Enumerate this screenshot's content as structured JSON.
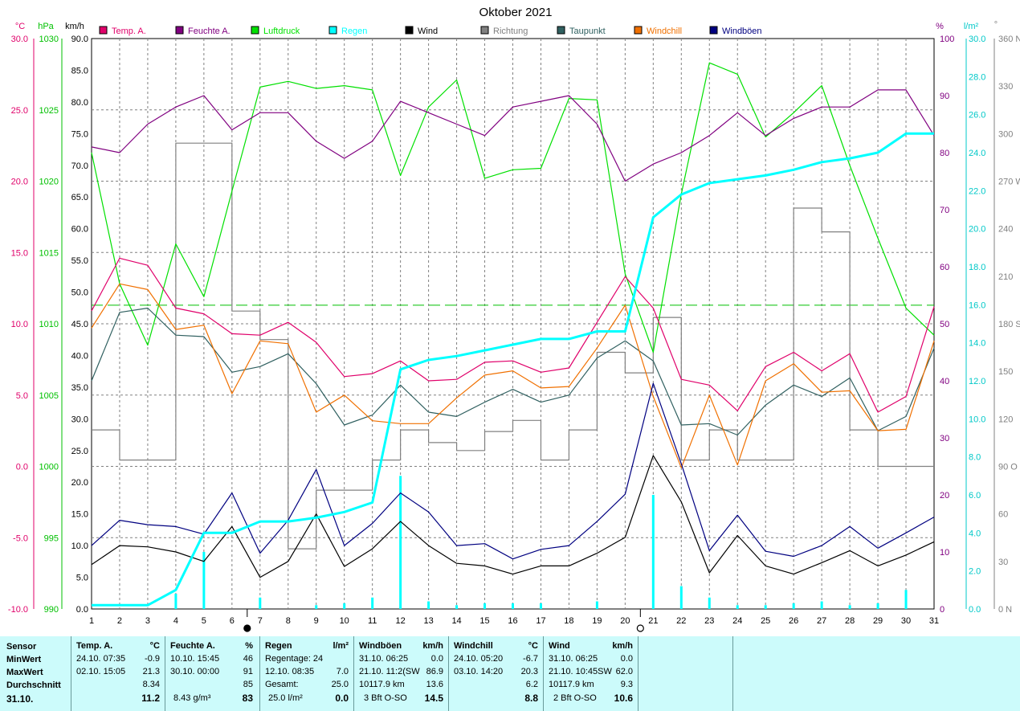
{
  "title": "Oktober 2021",
  "axes": {
    "left1": {
      "unit": "°C",
      "ticks": [
        "30.0",
        "25.0",
        "20.0",
        "15.0",
        "10.0",
        "5.0",
        "0.0",
        "-5.0",
        "-10.0"
      ],
      "color": "#e0006a"
    },
    "left2": {
      "unit": "hPa",
      "ticks": [
        "1030",
        "1025",
        "1020",
        "1015",
        "1010",
        "1005",
        "1000",
        "995",
        "990"
      ],
      "color": "#00c000"
    },
    "left3": {
      "unit": "km/h",
      "ticks": [
        "90.0",
        "85.0",
        "80.0",
        "75.0",
        "70.0",
        "65.0",
        "60.0",
        "55.0",
        "50.0",
        "45.0",
        "40.0",
        "35.0",
        "30.0",
        "25.0",
        "20.0",
        "15.0",
        "10.0",
        "5.0",
        "0.0"
      ],
      "color": "#000000"
    },
    "right1": {
      "unit": "%",
      "ticks": [
        "100",
        "90",
        "80",
        "70",
        "60",
        "50",
        "40",
        "30",
        "20",
        "10",
        "0"
      ],
      "color": "#800080"
    },
    "right2": {
      "unit": "l/m²",
      "ticks": [
        "30.0",
        "28.0",
        "26.0",
        "24.0",
        "22.0",
        "20.0",
        "18.0",
        "16.0",
        "14.0",
        "12.0",
        "10.0",
        "8.0",
        "6.0",
        "4.0",
        "2.0",
        "0.0"
      ],
      "color": "#00c8c8"
    },
    "right3": {
      "unit": "°",
      "ticks": [
        "360 N",
        "330",
        "300",
        "270 W",
        "240",
        "210",
        "180 S",
        "150",
        "120",
        "90 O",
        "60",
        "30",
        "0 N"
      ],
      "color": "#808080"
    }
  },
  "legend": [
    {
      "label": "Temp. A.",
      "color": "#e0006a"
    },
    {
      "label": "Feuchte A.",
      "color": "#800080"
    },
    {
      "label": "Luftdruck",
      "color": "#00e000"
    },
    {
      "label": "Regen",
      "color": "#00ffff"
    },
    {
      "label": "Wind",
      "color": "#000000"
    },
    {
      "label": "Richtung",
      "color": "#808080"
    },
    {
      "label": "Taupunkt",
      "color": "#306060"
    },
    {
      "label": "Windchill",
      "color": "#f07000"
    },
    {
      "label": "Windböen",
      "color": "#000080"
    }
  ],
  "chart_data": {
    "type": "line",
    "title": "Oktober 2021",
    "x": [
      1,
      2,
      3,
      4,
      5,
      6,
      7,
      8,
      9,
      10,
      11,
      12,
      13,
      14,
      15,
      16,
      17,
      18,
      19,
      20,
      21,
      22,
      23,
      24,
      25,
      26,
      27,
      28,
      29,
      30,
      31
    ],
    "moon_phases": [
      {
        "day": 7,
        "phase": "new"
      },
      {
        "day": 21,
        "phase": "full"
      }
    ],
    "pressure_reference_hpa": 1011.3,
    "series": [
      {
        "name": "Temp. A.",
        "axis": "°C",
        "color": "#e0006a",
        "values": [
          10.9,
          14.6,
          14.1,
          11.1,
          10.7,
          9.3,
          9.2,
          10.1,
          8.7,
          6.3,
          6.5,
          7.4,
          6.0,
          6.1,
          7.3,
          7.4,
          6.6,
          6.9,
          10.1,
          13.3,
          11.1,
          6.1,
          5.7,
          3.9,
          7.0,
          8.0,
          6.7,
          7.9,
          3.8,
          4.9,
          11.2
        ]
      },
      {
        "name": "Feuchte A.",
        "axis": "%",
        "color": "#800080",
        "values": [
          81,
          80,
          85,
          88,
          90,
          84,
          87,
          87,
          82,
          79,
          82,
          89,
          87,
          85,
          83,
          88,
          89,
          90,
          85,
          75,
          78,
          80,
          83,
          87,
          83,
          86,
          88,
          88,
          91,
          91,
          83
        ]
      },
      {
        "name": "Luftdruck",
        "axis": "hPa",
        "color": "#00e000",
        "values": [
          1022.0,
          1012.8,
          1008.5,
          1015.6,
          1011.9,
          1019.3,
          1026.6,
          1027.0,
          1026.5,
          1026.7,
          1026.4,
          1020.4,
          1025.2,
          1027.1,
          1020.2,
          1020.8,
          1020.9,
          1025.8,
          1025.7,
          1013.5,
          1008.0,
          1019.1,
          1028.3,
          1027.5,
          1023.1,
          1024.8,
          1026.7,
          1021.1,
          1016.0,
          1011.1,
          1009.2
        ]
      },
      {
        "name": "Regen",
        "axis": "l/m²",
        "color": "#00ffff",
        "kind": "cumulative",
        "values": [
          0.2,
          0.2,
          0.2,
          1.0,
          4.0,
          4.0,
          4.6,
          4.6,
          4.8,
          5.1,
          5.6,
          12.6,
          13.1,
          13.3,
          13.6,
          13.9,
          14.2,
          14.2,
          14.6,
          14.6,
          20.6,
          21.8,
          22.4,
          22.6,
          22.8,
          23.1,
          23.5,
          23.7,
          24.0,
          25.0,
          25.0
        ]
      },
      {
        "name": "Regen",
        "axis": "l/m²",
        "color": "#00ffff",
        "kind": "daily",
        "values": [
          0.0,
          0.0,
          0.0,
          0.8,
          3.0,
          0.0,
          0.6,
          0.0,
          0.2,
          0.3,
          0.6,
          7.0,
          0.4,
          0.2,
          0.3,
          0.3,
          0.3,
          0.0,
          0.4,
          0.0,
          6.0,
          1.2,
          0.6,
          0.2,
          0.2,
          0.3,
          0.4,
          0.2,
          0.3,
          1.0,
          0.0
        ]
      },
      {
        "name": "Wind",
        "axis": "km/h",
        "color": "#000000",
        "values": [
          7.0,
          10.0,
          9.8,
          9.0,
          7.5,
          13.0,
          5.0,
          7.5,
          15.0,
          6.7,
          9.5,
          13.8,
          10.0,
          7.2,
          6.8,
          5.5,
          6.8,
          6.8,
          8.8,
          11.3,
          24.2,
          16.9,
          5.7,
          11.6,
          6.8,
          5.5,
          7.3,
          9.2,
          6.8,
          8.5,
          10.6
        ]
      },
      {
        "name": "Richtung",
        "axis": "°",
        "color": "#808080",
        "values": [
          113,
          94,
          94,
          294,
          294,
          188,
          170,
          38,
          75,
          75,
          94,
          113,
          105,
          100,
          112,
          119,
          94,
          113,
          162,
          149,
          184,
          94,
          113,
          94,
          94,
          253,
          238,
          113,
          90,
          90,
          90
        ]
      },
      {
        "name": "Taupunkt",
        "axis": "°C",
        "color": "#306060",
        "values": [
          6.0,
          10.8,
          11.1,
          9.2,
          9.1,
          6.6,
          7.0,
          7.9,
          5.8,
          2.9,
          3.6,
          5.7,
          3.8,
          3.5,
          4.5,
          5.4,
          4.5,
          5.0,
          7.6,
          8.8,
          7.4,
          2.9,
          3.0,
          2.2,
          4.3,
          5.7,
          4.9,
          6.2,
          2.5,
          3.5,
          8.3
        ]
      },
      {
        "name": "Windchill",
        "axis": "°C",
        "color": "#f07000",
        "values": [
          9.7,
          12.8,
          12.4,
          9.6,
          9.9,
          5.1,
          8.8,
          8.6,
          3.8,
          5.0,
          3.2,
          3.0,
          3.0,
          4.8,
          6.4,
          6.7,
          5.5,
          5.6,
          8.3,
          11.3,
          4.9,
          -0.1,
          5.0,
          0.1,
          6.0,
          7.2,
          5.2,
          5.3,
          2.5,
          2.6,
          8.8
        ]
      },
      {
        "name": "Windböen",
        "axis": "km/h",
        "color": "#000080",
        "values": [
          10.0,
          14.0,
          13.3,
          13.0,
          11.8,
          18.3,
          8.8,
          14.0,
          22.0,
          10.0,
          13.5,
          18.3,
          15.3,
          10.0,
          10.3,
          7.9,
          9.4,
          10.0,
          13.8,
          18.1,
          35.6,
          22.9,
          9.2,
          14.8,
          9.1,
          8.3,
          10.0,
          13.0,
          9.6,
          12.0,
          14.5
        ]
      }
    ],
    "xlim": [
      1,
      31
    ],
    "ylim_temp": [
      -10,
      30
    ],
    "ylim_pressure": [
      990,
      1030
    ],
    "ylim_wind": [
      0,
      90
    ],
    "ylim_humidity": [
      0,
      100
    ],
    "ylim_rain": [
      0,
      30
    ],
    "ylim_direction": [
      0,
      360
    ],
    "grid": true,
    "legend_position": "top"
  },
  "stats": {
    "sensor": {
      "header": "Sensor",
      "rows": [
        "MinWert",
        "MaxWert",
        "Durchschnitt",
        "31.10."
      ]
    },
    "temp": {
      "header": "Temp. A.",
      "unit": "°C",
      "min_date": "24.10.  07:35",
      "min_val": "-0.9",
      "max_date": "02.10.  15:05",
      "max_val": "21.3",
      "avg": "8.34",
      "today": "11.2"
    },
    "humidity": {
      "header": "Feuchte A.",
      "unit": "%",
      "min_date": "10.10.  15:45",
      "min_val": "46",
      "max_date": "30.10.  00:00",
      "max_val": "91",
      "avg": "85",
      "today_extra": "8.43 g/m³",
      "today": "83"
    },
    "rain": {
      "header": "Regen",
      "unit": "l/m²",
      "row1": "Regentage: 24",
      "row1_val": "",
      "row2": "12.10.  08:35",
      "row2_val": "7.0",
      "row3": "Gesamt:",
      "row3_val": "25.0",
      "row4": "25.0 l/m²",
      "row4_val": "0.0"
    },
    "gusts": {
      "header": "Windböen",
      "unit": "km/h",
      "min_date": "31.10.  06:25",
      "min_val": "0.0",
      "max_date": "21.10.  11:2(SW",
      "max_val": "86.9",
      "avg_label": "10117.9 km",
      "avg": "13.6",
      "today_label": "3 Bft O-SO",
      "today": "14.5"
    },
    "windchill": {
      "header": "Windchill",
      "unit": "°C",
      "min_date": "24.10.  05:20",
      "min_val": "-6.7",
      "max_date": "03.10.  14:20",
      "max_val": "20.3",
      "avg": "6.2",
      "today": "8.8"
    },
    "wind": {
      "header": "Wind",
      "unit": "km/h",
      "min_date": "31.10.  06:25",
      "min_val": "0.0",
      "max_date": "21.10.  10:45SW",
      "max_val": "62.0",
      "avg_label": "10117.9 km",
      "avg": "9.3",
      "today_label": "2 Bft O-SO",
      "today": "10.6"
    }
  }
}
